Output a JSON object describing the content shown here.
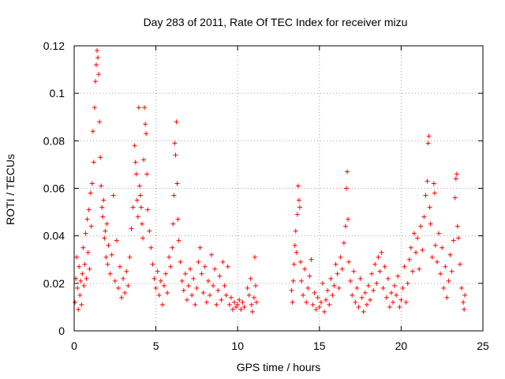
{
  "chart_data": {
    "type": "scatter",
    "title": "Day 283 of 2011, Rate Of TEC Index for receiver mizu",
    "xlabel": "GPS time / hours",
    "ylabel": "ROTI / TECUs",
    "xlim": [
      0,
      25
    ],
    "ylim": [
      0,
      0.12
    ],
    "x_ticks": [
      0,
      5,
      10,
      15,
      20,
      25
    ],
    "y_ticks": [
      0,
      0.02,
      0.04,
      0.06,
      0.08,
      0.1,
      0.12
    ],
    "x_tick_labels": [
      "0",
      "5",
      "10",
      "15",
      "20",
      "25"
    ],
    "y_tick_labels": [
      "0",
      "0.02",
      "0.04",
      "0.06",
      "0.08",
      "0.1",
      "0.12"
    ],
    "grid": true,
    "marker": "+",
    "color": "#ff0000",
    "series": [
      {
        "name": "ROTI",
        "points": [
          [
            0.05,
            0.012
          ],
          [
            0.1,
            0.022
          ],
          [
            0.15,
            0.031
          ],
          [
            0.2,
            0.018
          ],
          [
            0.25,
            0.009
          ],
          [
            0.3,
            0.027
          ],
          [
            0.35,
            0.015
          ],
          [
            0.4,
            0.021
          ],
          [
            0.45,
            0.011
          ],
          [
            0.5,
            0.024
          ],
          [
            0.55,
            0.035
          ],
          [
            0.6,
            0.019
          ],
          [
            0.65,
            0.028
          ],
          [
            0.7,
            0.041
          ],
          [
            0.75,
            0.022
          ],
          [
            0.8,
            0.047
          ],
          [
            0.85,
            0.033
          ],
          [
            0.9,
            0.051
          ],
          [
            0.95,
            0.026
          ],
          [
            1.0,
            0.058
          ],
          [
            1.05,
            0.044
          ],
          [
            1.1,
            0.062
          ],
          [
            1.15,
            0.084
          ],
          [
            1.2,
            0.071
          ],
          [
            1.25,
            0.094
          ],
          [
            1.3,
            0.105
          ],
          [
            1.35,
            0.112
          ],
          [
            1.4,
            0.118
          ],
          [
            1.45,
            0.115
          ],
          [
            1.5,
            0.108
          ],
          [
            1.55,
            0.088
          ],
          [
            1.6,
            0.073
          ],
          [
            1.65,
            0.061
          ],
          [
            1.7,
            0.052
          ],
          [
            1.75,
            0.048
          ],
          [
            1.8,
            0.055
          ],
          [
            1.85,
            0.039
          ],
          [
            1.9,
            0.042
          ],
          [
            1.95,
            0.031
          ],
          [
            2.0,
            0.045
          ],
          [
            2.05,
            0.028
          ],
          [
            2.1,
            0.036
          ],
          [
            2.2,
            0.024
          ],
          [
            2.3,
            0.032
          ],
          [
            2.4,
            0.057
          ],
          [
            2.5,
            0.021
          ],
          [
            2.6,
            0.038
          ],
          [
            2.7,
            0.018
          ],
          [
            2.8,
            0.027
          ],
          [
            2.9,
            0.014
          ],
          [
            3.0,
            0.022
          ],
          [
            3.1,
            0.016
          ],
          [
            3.2,
            0.025
          ],
          [
            3.3,
            0.019
          ],
          [
            3.4,
            0.031
          ],
          [
            3.5,
            0.043
          ],
          [
            3.6,
            0.052
          ],
          [
            3.7,
            0.078
          ],
          [
            3.75,
            0.071
          ],
          [
            3.8,
            0.066
          ],
          [
            3.85,
            0.055
          ],
          [
            3.9,
            0.048
          ],
          [
            3.95,
            0.094
          ],
          [
            4.0,
            0.061
          ],
          [
            4.05,
            0.057
          ],
          [
            4.1,
            0.052
          ],
          [
            4.15,
            0.045
          ],
          [
            4.2,
            0.039
          ],
          [
            4.25,
            0.072
          ],
          [
            4.3,
            0.094
          ],
          [
            4.35,
            0.087
          ],
          [
            4.4,
            0.083
          ],
          [
            4.45,
            0.066
          ],
          [
            4.5,
            0.051
          ],
          [
            4.6,
            0.042
          ],
          [
            4.7,
            0.035
          ],
          [
            4.8,
            0.028
          ],
          [
            4.9,
            0.022
          ],
          [
            5.0,
            0.018
          ],
          [
            5.1,
            0.025
          ],
          [
            5.2,
            0.015
          ],
          [
            5.3,
            0.021
          ],
          [
            5.4,
            0.011
          ],
          [
            5.5,
            0.019
          ],
          [
            5.6,
            0.024
          ],
          [
            5.7,
            0.016
          ],
          [
            5.8,
            0.031
          ],
          [
            5.9,
            0.027
          ],
          [
            6.0,
            0.035
          ],
          [
            6.05,
            0.045
          ],
          [
            6.1,
            0.057
          ],
          [
            6.15,
            0.079
          ],
          [
            6.2,
            0.074
          ],
          [
            6.25,
            0.088
          ],
          [
            6.3,
            0.062
          ],
          [
            6.35,
            0.047
          ],
          [
            6.4,
            0.038
          ],
          [
            6.5,
            0.029
          ],
          [
            6.6,
            0.021
          ],
          [
            6.7,
            0.017
          ],
          [
            6.8,
            0.024
          ],
          [
            6.9,
            0.013
          ],
          [
            7.0,
            0.019
          ],
          [
            7.1,
            0.026
          ],
          [
            7.2,
            0.015
          ],
          [
            7.3,
            0.022
          ],
          [
            7.4,
            0.011
          ],
          [
            7.5,
            0.018
          ],
          [
            7.6,
            0.029
          ],
          [
            7.7,
            0.035
          ],
          [
            7.8,
            0.024
          ],
          [
            7.9,
            0.016
          ],
          [
            8.0,
            0.027
          ],
          [
            8.1,
            0.012
          ],
          [
            8.2,
            0.021
          ],
          [
            8.3,
            0.015
          ],
          [
            8.4,
            0.032
          ],
          [
            8.5,
            0.019
          ],
          [
            8.6,
            0.026
          ],
          [
            8.7,
            0.011
          ],
          [
            8.8,
            0.017
          ],
          [
            8.9,
            0.023
          ],
          [
            9.0,
            0.013
          ],
          [
            9.1,
            0.029
          ],
          [
            9.2,
            0.019
          ],
          [
            9.3,
            0.015
          ],
          [
            9.4,
            0.027
          ],
          [
            9.5,
            0.011
          ],
          [
            9.6,
            0.014
          ],
          [
            9.7,
            0.009
          ],
          [
            9.8,
            0.012
          ],
          [
            9.9,
            0.01
          ],
          [
            10.0,
            0.011
          ],
          [
            10.1,
            0.013
          ],
          [
            10.2,
            0.009
          ],
          [
            10.3,
            0.012
          ],
          [
            10.4,
            0.01
          ],
          [
            10.6,
            0.018
          ],
          [
            10.7,
            0.015
          ],
          [
            10.8,
            0.022
          ],
          [
            10.85,
            0.011
          ],
          [
            10.9,
            0.008
          ],
          [
            11.0,
            0.014
          ],
          [
            11.05,
            0.031
          ],
          [
            11.1,
            0.019
          ],
          [
            11.15,
            0.012
          ],
          [
            13.3,
            0.017
          ],
          [
            13.35,
            0.012
          ],
          [
            13.4,
            0.021
          ],
          [
            13.45,
            0.028
          ],
          [
            13.5,
            0.036
          ],
          [
            13.55,
            0.042
          ],
          [
            13.6,
            0.033
          ],
          [
            13.65,
            0.049
          ],
          [
            13.7,
            0.061
          ],
          [
            13.75,
            0.055
          ],
          [
            13.8,
            0.052
          ],
          [
            13.85,
            0.029
          ],
          [
            13.9,
            0.021
          ],
          [
            14.0,
            0.015
          ],
          [
            14.1,
            0.026
          ],
          [
            14.2,
            0.012
          ],
          [
            14.3,
            0.018
          ],
          [
            14.4,
            0.023
          ],
          [
            14.5,
            0.03
          ],
          [
            14.6,
            0.011
          ],
          [
            14.7,
            0.016
          ],
          [
            14.8,
            0.009
          ],
          [
            14.9,
            0.014
          ],
          [
            15.0,
            0.01
          ],
          [
            15.1,
            0.012
          ],
          [
            15.2,
            0.02
          ],
          [
            15.3,
            0.008
          ],
          [
            15.4,
            0.013
          ],
          [
            15.5,
            0.017
          ],
          [
            15.6,
            0.011
          ],
          [
            15.7,
            0.022
          ],
          [
            15.8,
            0.015
          ],
          [
            15.9,
            0.019
          ],
          [
            16.0,
            0.028
          ],
          [
            16.1,
            0.024
          ],
          [
            16.2,
            0.018
          ],
          [
            16.3,
            0.031
          ],
          [
            16.4,
            0.026
          ],
          [
            16.5,
            0.037
          ],
          [
            16.6,
            0.044
          ],
          [
            16.65,
            0.06
          ],
          [
            16.7,
            0.067
          ],
          [
            16.75,
            0.047
          ],
          [
            16.8,
            0.029
          ],
          [
            16.9,
            0.021
          ],
          [
            17.0,
            0.015
          ],
          [
            17.1,
            0.025
          ],
          [
            17.2,
            0.012
          ],
          [
            17.3,
            0.018
          ],
          [
            17.4,
            0.01
          ],
          [
            17.5,
            0.022
          ],
          [
            17.6,
            0.014
          ],
          [
            17.7,
            0.008
          ],
          [
            17.8,
            0.016
          ],
          [
            17.9,
            0.011
          ],
          [
            18.0,
            0.019
          ],
          [
            18.1,
            0.013
          ],
          [
            18.2,
            0.024
          ],
          [
            18.3,
            0.017
          ],
          [
            18.4,
            0.028
          ],
          [
            18.5,
            0.02
          ],
          [
            18.6,
            0.031
          ],
          [
            18.7,
            0.025
          ],
          [
            18.8,
            0.033
          ],
          [
            18.9,
            0.018
          ],
          [
            19.0,
            0.027
          ],
          [
            19.1,
            0.014
          ],
          [
            19.2,
            0.022
          ],
          [
            19.3,
            0.01
          ],
          [
            19.4,
            0.016
          ],
          [
            19.5,
            0.012
          ],
          [
            19.6,
            0.019
          ],
          [
            19.7,
            0.015
          ],
          [
            19.8,
            0.023
          ],
          [
            19.9,
            0.01
          ],
          [
            20.0,
            0.013
          ],
          [
            20.1,
            0.018
          ],
          [
            20.2,
            0.027
          ],
          [
            20.3,
            0.012
          ],
          [
            20.4,
            0.02
          ],
          [
            20.5,
            0.03
          ],
          [
            20.6,
            0.035
          ],
          [
            20.7,
            0.025
          ],
          [
            20.8,
            0.041
          ],
          [
            20.9,
            0.033
          ],
          [
            21.0,
            0.039
          ],
          [
            21.1,
            0.026
          ],
          [
            21.2,
            0.044
          ],
          [
            21.3,
            0.034
          ],
          [
            21.4,
            0.048
          ],
          [
            21.5,
            0.057
          ],
          [
            21.6,
            0.063
          ],
          [
            21.65,
            0.079
          ],
          [
            21.7,
            0.082
          ],
          [
            21.75,
            0.052
          ],
          [
            21.8,
            0.045
          ],
          [
            21.9,
            0.031
          ],
          [
            22.0,
            0.062
          ],
          [
            22.05,
            0.058
          ],
          [
            22.1,
            0.036
          ],
          [
            22.2,
            0.029
          ],
          [
            22.3,
            0.041
          ],
          [
            22.4,
            0.024
          ],
          [
            22.5,
            0.035
          ],
          [
            22.6,
            0.018
          ],
          [
            22.7,
            0.027
          ],
          [
            22.8,
            0.014
          ],
          [
            22.9,
            0.021
          ],
          [
            23.0,
            0.032
          ],
          [
            23.1,
            0.025
          ],
          [
            23.2,
            0.038
          ],
          [
            23.3,
            0.056
          ],
          [
            23.35,
            0.064
          ],
          [
            23.4,
            0.066
          ],
          [
            23.45,
            0.044
          ],
          [
            23.5,
            0.039
          ],
          [
            23.6,
            0.028
          ],
          [
            23.7,
            0.018
          ],
          [
            23.8,
            0.012
          ],
          [
            23.85,
            0.009
          ],
          [
            23.9,
            0.015
          ]
        ]
      }
    ]
  }
}
